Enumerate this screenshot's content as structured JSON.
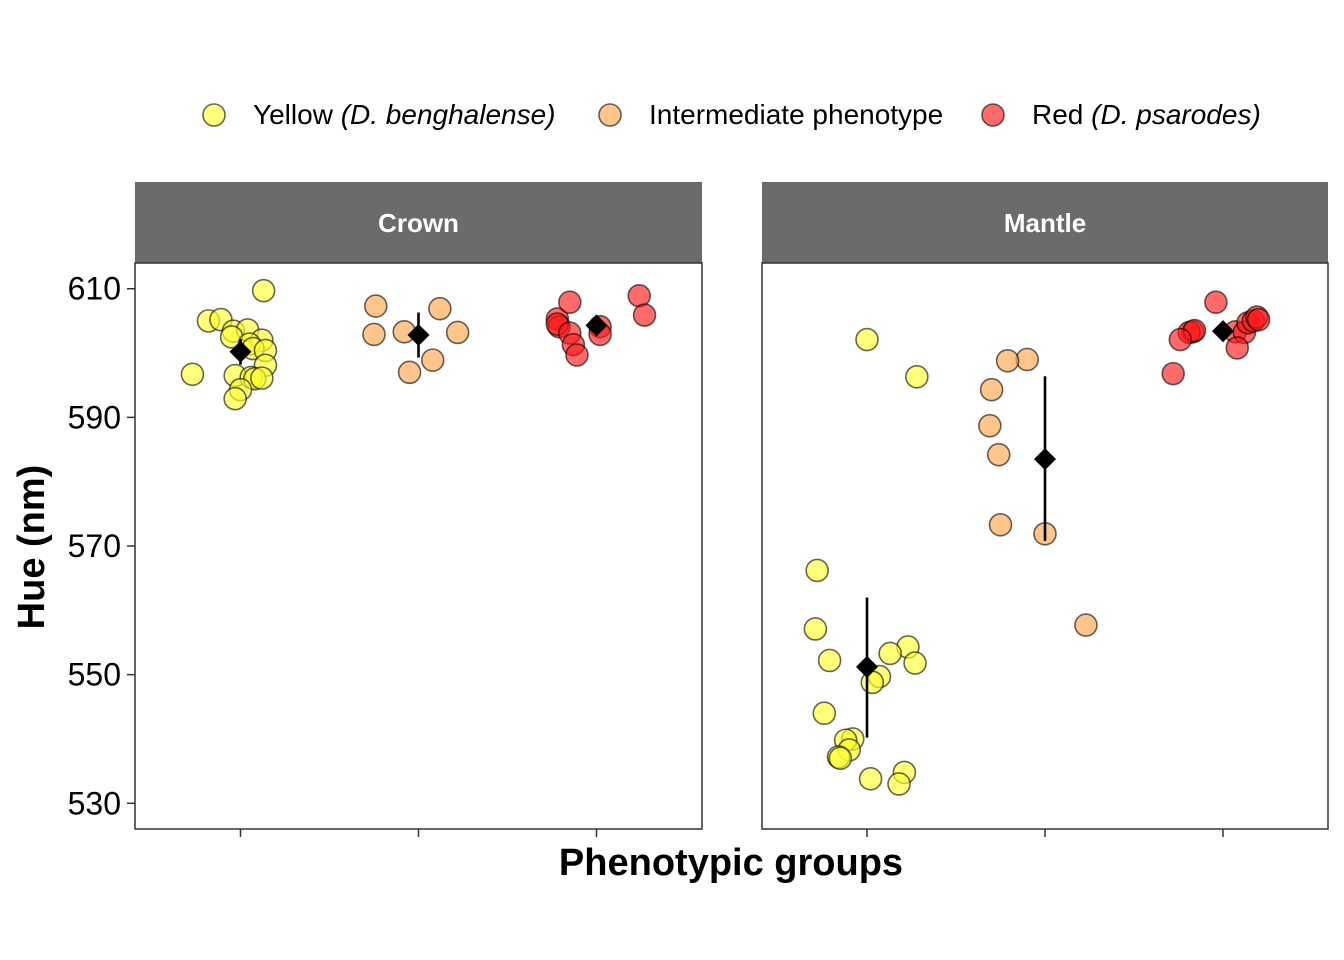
{
  "chart_data": {
    "type": "scatter",
    "xlabel": "Phenotypic groups",
    "ylabel": "Hue (nm)",
    "ylim": [
      526,
      614
    ],
    "y_ticks": [
      "530",
      "550",
      "570",
      "590",
      "610"
    ],
    "y_tick_values": [
      530,
      550,
      570,
      590,
      610
    ],
    "grid": false,
    "legend_position": "top",
    "groups": [
      {
        "key": "yellow",
        "label_plain": "Yellow ",
        "label_italic": "(D. benghalense)",
        "fill": "#ffff33"
      },
      {
        "key": "intermediate",
        "label_plain": "Intermediate phenotype",
        "label_italic": "",
        "fill": "#ffa64d"
      },
      {
        "key": "red",
        "label_plain": "Red ",
        "label_italic": "(D. psarodes)",
        "fill": "#ff1a1a"
      }
    ],
    "panels": [
      {
        "title": "Crown",
        "summary": {
          "yellow": {
            "mean": 600.2,
            "lower": 598.2,
            "upper": 602.2
          },
          "intermediate": {
            "mean": 602.8,
            "lower": 599.3,
            "upper": 606.3
          },
          "red": {
            "mean": 604.3,
            "lower": 603.0,
            "upper": 605.6
          }
        },
        "points": {
          "yellow": [
            {
              "jitter": -0.18,
              "y": 605.0
            },
            {
              "jitter": -0.11,
              "y": 605.2
            },
            {
              "jitter": -0.04,
              "y": 603.4
            },
            {
              "jitter": 0.04,
              "y": 603.6
            },
            {
              "jitter": 0.13,
              "y": 609.7
            },
            {
              "jitter": -0.05,
              "y": 602.5
            },
            {
              "jitter": 0.12,
              "y": 602.0
            },
            {
              "jitter": 0.05,
              "y": 601.4
            },
            {
              "jitter": 0.07,
              "y": 600.7
            },
            {
              "jitter": 0.14,
              "y": 600.4
            },
            {
              "jitter": 0.14,
              "y": 598.1
            },
            {
              "jitter": -0.27,
              "y": 596.7
            },
            {
              "jitter": -0.03,
              "y": 596.5
            },
            {
              "jitter": 0.06,
              "y": 596.2
            },
            {
              "jitter": 0.08,
              "y": 596.0
            },
            {
              "jitter": 0.12,
              "y": 596.1
            },
            {
              "jitter": 0.0,
              "y": 594.3
            },
            {
              "jitter": -0.03,
              "y": 592.9
            }
          ],
          "intermediate": [
            {
              "jitter": -0.24,
              "y": 607.3
            },
            {
              "jitter": 0.12,
              "y": 606.9
            },
            {
              "jitter": -0.25,
              "y": 602.9
            },
            {
              "jitter": -0.08,
              "y": 603.3
            },
            {
              "jitter": 0.22,
              "y": 603.2
            },
            {
              "jitter": 0.08,
              "y": 598.9
            },
            {
              "jitter": -0.05,
              "y": 597.0
            }
          ],
          "red": [
            {
              "jitter": -0.22,
              "y": 605.3
            },
            {
              "jitter": -0.21,
              "y": 604.1
            },
            {
              "jitter": -0.22,
              "y": 604.5
            },
            {
              "jitter": -0.15,
              "y": 607.9
            },
            {
              "jitter": -0.15,
              "y": 603.1
            },
            {
              "jitter": -0.13,
              "y": 601.3
            },
            {
              "jitter": -0.11,
              "y": 599.7
            },
            {
              "jitter": 0.02,
              "y": 604.1
            },
            {
              "jitter": 0.02,
              "y": 602.9
            },
            {
              "jitter": 0.24,
              "y": 608.9
            },
            {
              "jitter": 0.27,
              "y": 605.9
            }
          ]
        }
      },
      {
        "title": "Mantle",
        "summary": {
          "yellow": {
            "mean": 551.2,
            "lower": 540.2,
            "upper": 562.0
          },
          "intermediate": {
            "mean": 583.5,
            "lower": 570.8,
            "upper": 596.4
          },
          "red": {
            "mean": 603.4,
            "lower": 601.8,
            "upper": 604.9
          }
        },
        "points": {
          "yellow": [
            {
              "jitter": 0.0,
              "y": 602.1
            },
            {
              "jitter": 0.28,
              "y": 596.3
            },
            {
              "jitter": -0.28,
              "y": 566.2
            },
            {
              "jitter": -0.29,
              "y": 557.1
            },
            {
              "jitter": -0.21,
              "y": 552.2
            },
            {
              "jitter": 0.23,
              "y": 554.3
            },
            {
              "jitter": 0.13,
              "y": 553.3
            },
            {
              "jitter": 0.27,
              "y": 551.8
            },
            {
              "jitter": 0.07,
              "y": 549.7
            },
            {
              "jitter": 0.03,
              "y": 548.8
            },
            {
              "jitter": -0.24,
              "y": 544.0
            },
            {
              "jitter": -0.08,
              "y": 540.0
            },
            {
              "jitter": -0.12,
              "y": 539.8
            },
            {
              "jitter": -0.1,
              "y": 538.3
            },
            {
              "jitter": -0.16,
              "y": 537.2
            },
            {
              "jitter": -0.15,
              "y": 537.0
            },
            {
              "jitter": 0.02,
              "y": 533.8
            },
            {
              "jitter": 0.21,
              "y": 534.8
            },
            {
              "jitter": 0.18,
              "y": 533.0
            }
          ],
          "intermediate": [
            {
              "jitter": -0.1,
              "y": 599.0
            },
            {
              "jitter": -0.21,
              "y": 598.8
            },
            {
              "jitter": -0.3,
              "y": 594.3
            },
            {
              "jitter": -0.31,
              "y": 588.7
            },
            {
              "jitter": -0.26,
              "y": 584.2
            },
            {
              "jitter": -0.25,
              "y": 573.3
            },
            {
              "jitter": 0.0,
              "y": 571.9
            },
            {
              "jitter": 0.23,
              "y": 557.7
            }
          ],
          "red": [
            {
              "jitter": -0.04,
              "y": 607.9
            },
            {
              "jitter": -0.17,
              "y": 603.3
            },
            {
              "jitter": -0.19,
              "y": 603.2
            },
            {
              "jitter": -0.16,
              "y": 603.5
            },
            {
              "jitter": -0.24,
              "y": 602.1
            },
            {
              "jitter": 0.07,
              "y": 603.3
            },
            {
              "jitter": 0.12,
              "y": 603.2
            },
            {
              "jitter": 0.14,
              "y": 604.7
            },
            {
              "jitter": 0.17,
              "y": 605.0
            },
            {
              "jitter": 0.19,
              "y": 605.6
            },
            {
              "jitter": 0.2,
              "y": 605.2
            },
            {
              "jitter": 0.08,
              "y": 600.8
            },
            {
              "jitter": -0.28,
              "y": 596.8
            }
          ]
        }
      }
    ]
  }
}
